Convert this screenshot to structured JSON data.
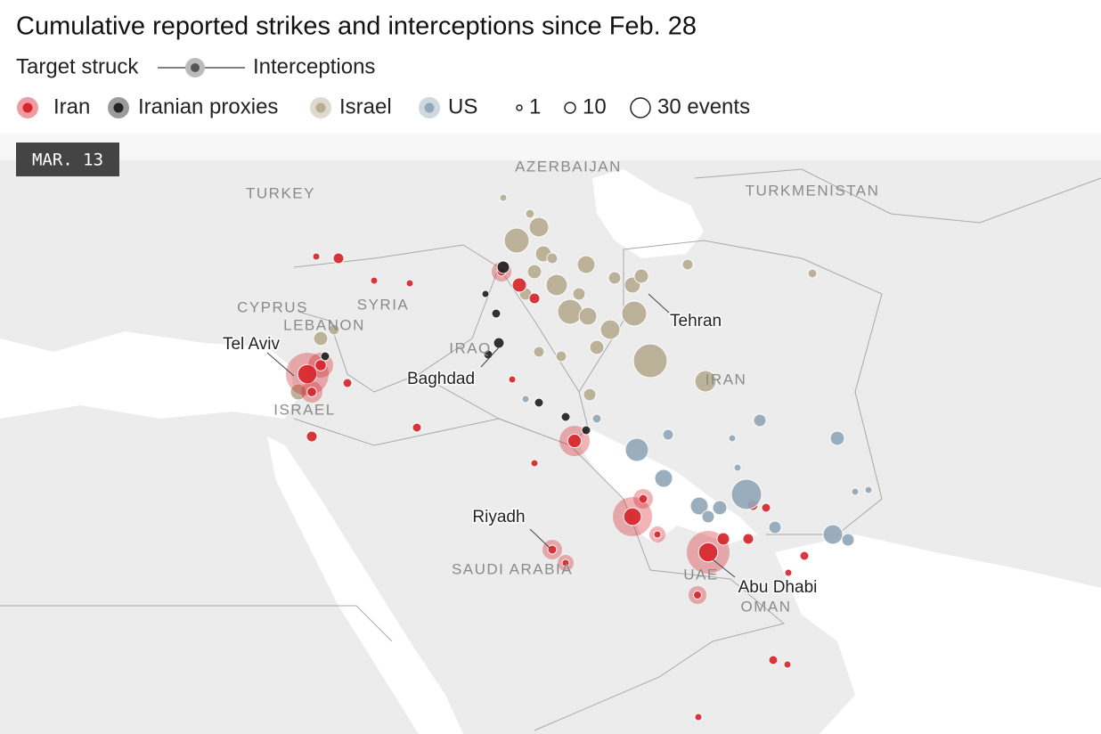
{
  "title": "Cumulative reported strikes and interceptions since Feb. 28",
  "legend": {
    "target_struck": "Target struck",
    "interceptions": "Interceptions",
    "actors": [
      {
        "name": "Iran",
        "color": "#d7262c"
      },
      {
        "name": "Iranian proxies",
        "color": "#222222"
      },
      {
        "name": "Israel",
        "color": "#b9ad93"
      },
      {
        "name": "US",
        "color": "#93a8b8"
      }
    ],
    "sizes": [
      "1",
      "10",
      "30 events"
    ]
  },
  "date_badge": "MAR. 13",
  "countries": [
    "TURKEY",
    "AZERBAIJAN",
    "TURKMENISTAN",
    "CYPRUS",
    "SYRIA",
    "LEBANON",
    "IRAQ",
    "IRAN",
    "ISRAEL",
    "SAUDI ARABIA",
    "UAE",
    "OMAN"
  ],
  "cities": [
    "Tehran",
    "Tel Aviv",
    "Baghdad",
    "Riyadh",
    "Abu Dhabi"
  ]
}
